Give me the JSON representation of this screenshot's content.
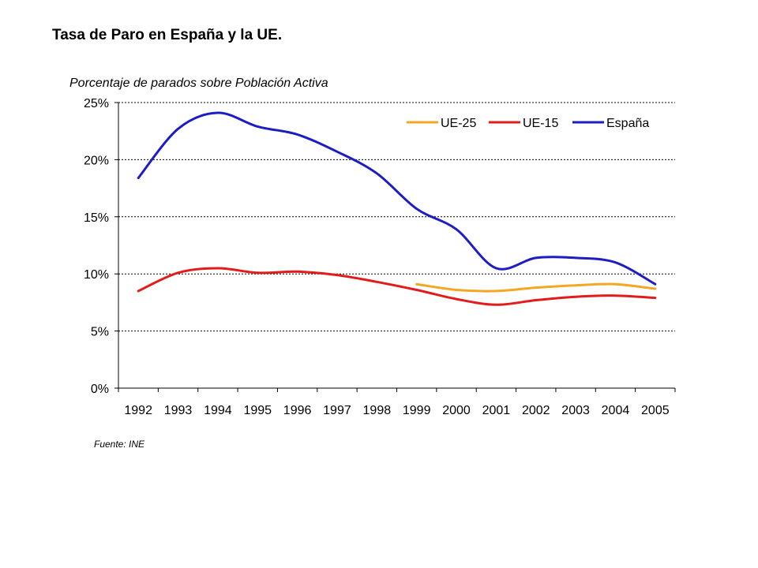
{
  "page": {
    "title": "Tasa de Paro en España y la UE.",
    "source": "Fuente: INE"
  },
  "chart_data": {
    "type": "line",
    "subtitle": "Porcentaje de parados sobre Población Activa",
    "x": [
      "1992",
      "1993",
      "1994",
      "1995",
      "1996",
      "1997",
      "1998",
      "1999",
      "2000",
      "2001",
      "2002",
      "2003",
      "2004",
      "2005"
    ],
    "y_ticks": [
      "0%",
      "5%",
      "10%",
      "15%",
      "20%",
      "25%"
    ],
    "ylim": [
      0,
      25
    ],
    "y_unit": "%",
    "grid": "horizontal dotted",
    "legend_position": "top-right",
    "series": [
      {
        "name": "UE-25",
        "color": "#f5a623",
        "values": [
          null,
          null,
          null,
          null,
          null,
          null,
          null,
          9.1,
          8.6,
          8.5,
          8.8,
          9.0,
          9.1,
          8.7
        ]
      },
      {
        "name": "UE-15",
        "color": "#e21b1b",
        "values": [
          8.5,
          10.1,
          10.5,
          10.1,
          10.2,
          9.9,
          9.3,
          8.6,
          7.8,
          7.3,
          7.7,
          8.0,
          8.1,
          7.9
        ]
      },
      {
        "name": "España",
        "color": "#1d1dc4",
        "values": [
          18.4,
          22.7,
          24.1,
          22.9,
          22.2,
          20.7,
          18.8,
          15.7,
          13.9,
          10.5,
          11.4,
          11.4,
          11.0,
          9.1
        ]
      }
    ]
  }
}
